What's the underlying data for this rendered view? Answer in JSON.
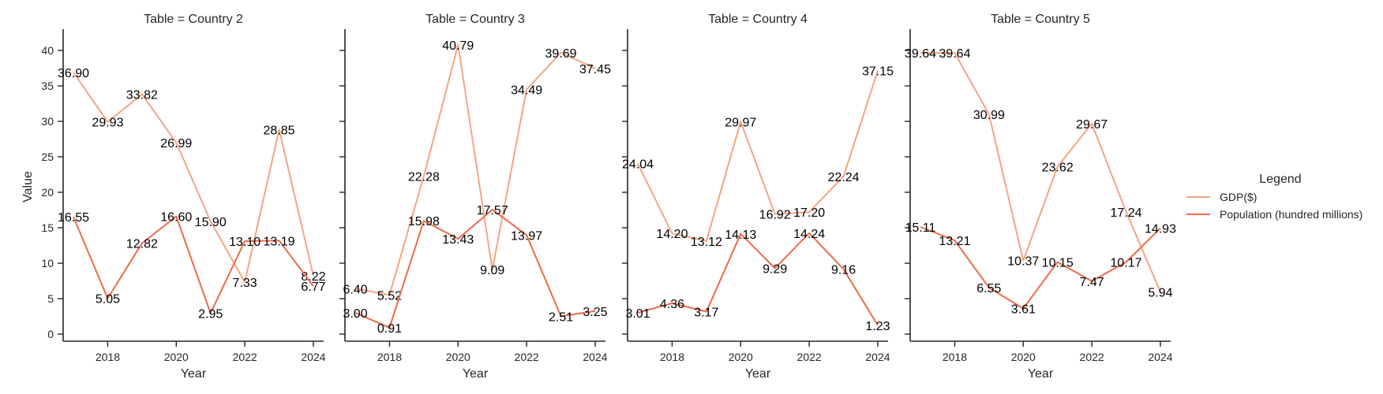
{
  "chart_data": {
    "type": "line",
    "x": [
      2017,
      2018,
      2019,
      2020,
      2021,
      2022,
      2023,
      2024
    ],
    "x_ticks": [
      2018,
      2020,
      2022,
      2024
    ],
    "y_ticks": [
      0,
      5,
      10,
      15,
      20,
      25,
      30,
      35,
      40
    ],
    "xlim": [
      2016.7,
      2024.3
    ],
    "ylim": [
      -1,
      43
    ],
    "xlabel": "Year",
    "ylabel": "Value",
    "grid": false,
    "legend": {
      "title": "Legend",
      "placement": "right",
      "entries": [
        {
          "name": "GDP($)",
          "color": "#f4a582"
        },
        {
          "name": "Population (hundred millions)",
          "color": "#ec6a4a"
        }
      ]
    },
    "panels": [
      {
        "title": "Table = Country 2",
        "series": [
          {
            "name": "GDP($)",
            "values": [
              36.9,
              29.93,
              33.82,
              26.99,
              15.9,
              7.33,
              28.85,
              8.22
            ],
            "labels": [
              "36.90",
              "29.93",
              "33.82",
              "26.99",
              "15.90",
              "7.33",
              "28.85",
              "8.22"
            ]
          },
          {
            "name": "Population (hundred millions)",
            "values": [
              16.55,
              5.05,
              12.82,
              16.6,
              2.95,
              13.1,
              13.19,
              6.77
            ],
            "labels": [
              "16.55",
              "5.05",
              "12.82",
              "16.60",
              "2.95",
              "13.10",
              "13.19",
              "6.77"
            ]
          }
        ]
      },
      {
        "title": "Table = Country 3",
        "series": [
          {
            "name": "GDP($)",
            "values": [
              6.4,
              5.52,
              22.28,
              40.79,
              9.09,
              34.49,
              39.69,
              37.45
            ],
            "labels": [
              "6.40",
              "5.52",
              "22.28",
              "40.79",
              "9.09",
              "34.49",
              "39.69",
              "37.45"
            ]
          },
          {
            "name": "Population (hundred millions)",
            "values": [
              3.0,
              0.91,
              15.98,
              13.43,
              17.57,
              13.97,
              2.51,
              3.25
            ],
            "labels": [
              "3.00",
              "0.91",
              "15.98",
              "13.43",
              "17.57",
              "13.97",
              "2.51",
              "3.25"
            ]
          }
        ]
      },
      {
        "title": "Table = Country 4",
        "series": [
          {
            "name": "GDP($)",
            "values": [
              24.04,
              14.2,
              13.12,
              29.97,
              16.92,
              17.2,
              22.24,
              37.15
            ],
            "labels": [
              "24.04",
              "14.20",
              "13.12",
              "29.97",
              "16.92",
              "17.20",
              "22.24",
              "37.15"
            ]
          },
          {
            "name": "Population (hundred millions)",
            "values": [
              3.01,
              4.36,
              3.17,
              14.13,
              9.29,
              14.24,
              9.16,
              1.23
            ],
            "labels": [
              "3.01",
              "4.36",
              "3.17",
              "14.13",
              "9.29",
              "14.24",
              "9.16",
              "1.23"
            ]
          }
        ]
      },
      {
        "title": "Table = Country 5",
        "series": [
          {
            "name": "GDP($)",
            "values": [
              39.64,
              39.64,
              30.99,
              10.37,
              23.62,
              29.67,
              17.24,
              5.94
            ],
            "labels": [
              "39.64",
              "39.64",
              "30.99",
              "10.37",
              "23.62",
              "29.67",
              "17.24",
              "5.94"
            ]
          },
          {
            "name": "Population (hundred millions)",
            "values": [
              15.11,
              13.21,
              6.55,
              3.61,
              10.15,
              7.47,
              10.17,
              14.93
            ],
            "labels": [
              "15.11",
              "13.21",
              "6.55",
              "3.61",
              "10.15",
              "7.47",
              "10.17",
              "14.93"
            ]
          }
        ]
      }
    ]
  }
}
